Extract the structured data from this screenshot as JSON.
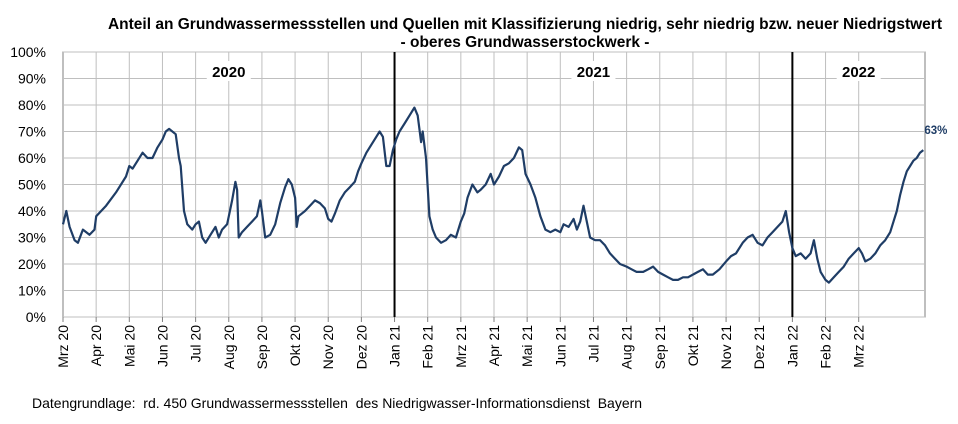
{
  "chart_data": {
    "type": "line",
    "title": "Anteil an Grundwassermessstellen und Quellen mit Klassifizierung niedrig, sehr niedrig bzw. neuer Niedrigstwert",
    "subtitle": "- oberes Grundwasserstockwerk -",
    "footer": "Datengrundlage:  rd. 450 Grundwassermessstellen  des Niedrigwasser-Informationsdienst  Bayern",
    "y_ticks": [
      "0%",
      "10%",
      "20%",
      "30%",
      "40%",
      "50%",
      "60%",
      "70%",
      "80%",
      "90%",
      "100%"
    ],
    "ylim": [
      0,
      100
    ],
    "x_tick_labels": [
      "Mrz 20",
      "Apr 20",
      "Mai 20",
      "Jun 20",
      "Jul 20",
      "Aug 20",
      "Sep 20",
      "Okt 20",
      "Nov 20",
      "Dez 20",
      "Jan 21",
      "Feb 21",
      "Mrz 21",
      "Apr 21",
      "Mai 21",
      "Jun 21",
      "Jul 21",
      "Aug 21",
      "Sep 21",
      "Okt 21",
      "Nov 21",
      "Dez 21",
      "Jan 22",
      "Feb 22",
      "Mrz 22"
    ],
    "year_labels": [
      "2020",
      "2021",
      "2022"
    ],
    "year_dividers": [
      "Jan 21",
      "Jan 22"
    ],
    "grid": true,
    "line_color": "#1f3d66",
    "end_label": "63%",
    "series": [
      {
        "values": [
          [
            0,
            35
          ],
          [
            0.1,
            40
          ],
          [
            0.2,
            34
          ],
          [
            0.35,
            29
          ],
          [
            0.45,
            28
          ],
          [
            0.6,
            33
          ],
          [
            0.8,
            31
          ],
          [
            0.95,
            33
          ],
          [
            1.0,
            38
          ],
          [
            1.3,
            42
          ],
          [
            1.6,
            47
          ],
          [
            1.9,
            53
          ],
          [
            2.0,
            57
          ],
          [
            2.1,
            56
          ],
          [
            2.25,
            59
          ],
          [
            2.4,
            62
          ],
          [
            2.55,
            60
          ],
          [
            2.7,
            60
          ],
          [
            2.85,
            64
          ],
          [
            3.0,
            67
          ],
          [
            3.1,
            70
          ],
          [
            3.2,
            71
          ],
          [
            3.4,
            69
          ],
          [
            3.5,
            60
          ],
          [
            3.55,
            57
          ],
          [
            3.65,
            40
          ],
          [
            3.75,
            35
          ],
          [
            3.9,
            33
          ],
          [
            4.0,
            35
          ],
          [
            4.1,
            36
          ],
          [
            4.2,
            30
          ],
          [
            4.3,
            28
          ],
          [
            4.45,
            31
          ],
          [
            4.6,
            34
          ],
          [
            4.7,
            30
          ],
          [
            4.8,
            33
          ],
          [
            4.95,
            35
          ],
          [
            5.0,
            38
          ],
          [
            5.1,
            44
          ],
          [
            5.2,
            51
          ],
          [
            5.25,
            48
          ],
          [
            5.3,
            30
          ],
          [
            5.4,
            32
          ],
          [
            5.55,
            34
          ],
          [
            5.7,
            36
          ],
          [
            5.85,
            38
          ],
          [
            5.95,
            44
          ],
          [
            6.0,
            40
          ],
          [
            6.1,
            30
          ],
          [
            6.25,
            31
          ],
          [
            6.4,
            35
          ],
          [
            6.55,
            43
          ],
          [
            6.7,
            49
          ],
          [
            6.8,
            52
          ],
          [
            6.9,
            50
          ],
          [
            7.0,
            45
          ],
          [
            7.05,
            34
          ],
          [
            7.1,
            38
          ],
          [
            7.3,
            40
          ],
          [
            7.45,
            42
          ],
          [
            7.6,
            44
          ],
          [
            7.75,
            43
          ],
          [
            7.9,
            41
          ],
          [
            8.0,
            37
          ],
          [
            8.1,
            36
          ],
          [
            8.2,
            39
          ],
          [
            8.35,
            44
          ],
          [
            8.5,
            47
          ],
          [
            8.65,
            49
          ],
          [
            8.8,
            51
          ],
          [
            8.9,
            55
          ],
          [
            9.0,
            58
          ],
          [
            9.15,
            62
          ],
          [
            9.3,
            65
          ],
          [
            9.45,
            68
          ],
          [
            9.55,
            70
          ],
          [
            9.65,
            68
          ],
          [
            9.75,
            57
          ],
          [
            9.85,
            57
          ],
          [
            9.95,
            63
          ],
          [
            10.05,
            67
          ],
          [
            10.15,
            70
          ],
          [
            10.3,
            73
          ],
          [
            10.45,
            76
          ],
          [
            10.6,
            79
          ],
          [
            10.7,
            76
          ],
          [
            10.8,
            66
          ],
          [
            10.85,
            70
          ],
          [
            10.95,
            60
          ],
          [
            11.05,
            38
          ],
          [
            11.15,
            33
          ],
          [
            11.25,
            30
          ],
          [
            11.4,
            28
          ],
          [
            11.55,
            29
          ],
          [
            11.7,
            31
          ],
          [
            11.85,
            30
          ],
          [
            12.0,
            36
          ],
          [
            12.1,
            39
          ],
          [
            12.2,
            45
          ],
          [
            12.35,
            50
          ],
          [
            12.5,
            47
          ],
          [
            12.6,
            48
          ],
          [
            12.75,
            50
          ],
          [
            12.9,
            54
          ],
          [
            13.0,
            50
          ],
          [
            13.15,
            53
          ],
          [
            13.3,
            57
          ],
          [
            13.45,
            58
          ],
          [
            13.6,
            60
          ],
          [
            13.75,
            64
          ],
          [
            13.85,
            63
          ],
          [
            13.95,
            54
          ],
          [
            14.1,
            50
          ],
          [
            14.25,
            45
          ],
          [
            14.4,
            38
          ],
          [
            14.55,
            33
          ],
          [
            14.7,
            32
          ],
          [
            14.85,
            33
          ],
          [
            15.0,
            32
          ],
          [
            15.1,
            35
          ],
          [
            15.25,
            34
          ],
          [
            15.4,
            37
          ],
          [
            15.5,
            33
          ],
          [
            15.6,
            36
          ],
          [
            15.7,
            42
          ],
          [
            15.8,
            36
          ],
          [
            15.9,
            30
          ],
          [
            16.05,
            29
          ],
          [
            16.2,
            29
          ],
          [
            16.35,
            27
          ],
          [
            16.5,
            24
          ],
          [
            16.65,
            22
          ],
          [
            16.8,
            20
          ],
          [
            17.0,
            19
          ],
          [
            17.15,
            18
          ],
          [
            17.3,
            17
          ],
          [
            17.5,
            17
          ],
          [
            17.65,
            18
          ],
          [
            17.8,
            19
          ],
          [
            17.95,
            17
          ],
          [
            18.1,
            16
          ],
          [
            18.25,
            15
          ],
          [
            18.4,
            14
          ],
          [
            18.55,
            14
          ],
          [
            18.7,
            15
          ],
          [
            18.85,
            15
          ],
          [
            19.0,
            16
          ],
          [
            19.15,
            17
          ],
          [
            19.3,
            18
          ],
          [
            19.45,
            16
          ],
          [
            19.6,
            16
          ],
          [
            19.8,
            18
          ],
          [
            20.0,
            21
          ],
          [
            20.15,
            23
          ],
          [
            20.3,
            24
          ],
          [
            20.5,
            28
          ],
          [
            20.65,
            30
          ],
          [
            20.8,
            31
          ],
          [
            20.95,
            28
          ],
          [
            21.1,
            27
          ],
          [
            21.25,
            30
          ],
          [
            21.4,
            32
          ],
          [
            21.55,
            34
          ],
          [
            21.7,
            36
          ],
          [
            21.8,
            40
          ],
          [
            21.9,
            32
          ],
          [
            22.0,
            26
          ],
          [
            22.1,
            23
          ],
          [
            22.25,
            24
          ],
          [
            22.4,
            22
          ],
          [
            22.55,
            24
          ],
          [
            22.65,
            29
          ],
          [
            22.75,
            22
          ],
          [
            22.85,
            17
          ],
          [
            23.0,
            14
          ],
          [
            23.1,
            13
          ],
          [
            23.25,
            15
          ],
          [
            23.4,
            17
          ],
          [
            23.55,
            19
          ],
          [
            23.7,
            22
          ],
          [
            23.85,
            24
          ],
          [
            24.0,
            26
          ],
          [
            24.1,
            24
          ],
          [
            24.2,
            21
          ],
          [
            24.35,
            22
          ],
          [
            24.5,
            24
          ],
          [
            24.65,
            27
          ],
          [
            24.8,
            29
          ],
          [
            24.95,
            32
          ],
          [
            25.05,
            36
          ],
          [
            25.15,
            40
          ],
          [
            25.25,
            46
          ],
          [
            25.35,
            51
          ],
          [
            25.45,
            55
          ],
          [
            25.55,
            57
          ],
          [
            25.65,
            59
          ],
          [
            25.75,
            60
          ],
          [
            25.85,
            62
          ],
          [
            25.95,
            63
          ]
        ]
      }
    ]
  }
}
